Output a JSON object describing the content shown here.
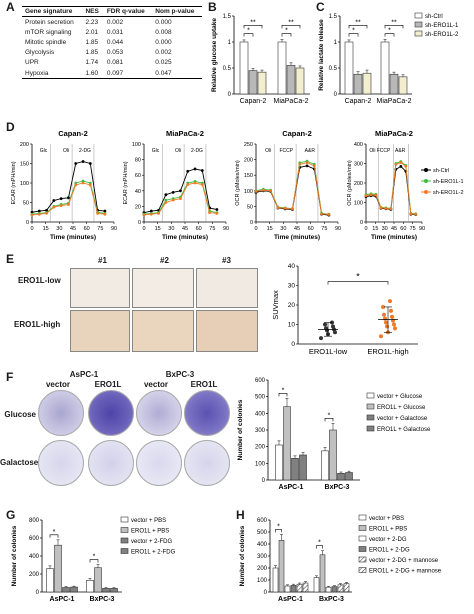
{
  "panels": {
    "A": "A",
    "B": "B",
    "C": "C",
    "D": "D",
    "E": "E",
    "F": "F",
    "G": "G",
    "H": "H"
  },
  "table": {
    "headers": [
      "Gene signature",
      "NES",
      "FDR q-value",
      "Nom p-value"
    ],
    "rows": [
      [
        "Protein secretion",
        "2.23",
        "0.002",
        "0.000"
      ],
      [
        "mTOR signaling",
        "2.01",
        "0.031",
        "0.008"
      ],
      [
        "Mitotic spindle",
        "1.85",
        "0.044",
        "0.000"
      ],
      [
        "Glycolysis",
        "1.85",
        "0.053",
        "0.002"
      ],
      [
        "UPR",
        "1.74",
        "0.081",
        "0.025"
      ],
      [
        "Hypoxia",
        "1.60",
        "0.097",
        "0.047"
      ]
    ]
  },
  "legend_bc": [
    "sh-Ctrl",
    "sh-ERO1L-1",
    "sh-ERO1L-2"
  ],
  "legend_d": [
    "sh-Ctrl",
    "sh-ERO1L-1",
    "sh-ERO1L-2"
  ],
  "panel_d_titles": [
    "Capan-2",
    "MiaPaCa-2",
    "Capan-2",
    "MiaPaCa-2"
  ],
  "panel_d_xlabel": "Time (minutes)",
  "panel_d_ylabels": [
    "ECAR (mPH/min)",
    "ECAR (mPH/min)",
    "OCR (pMoles/min)",
    "OCR (pMoles/min)"
  ],
  "panel_d_injections": [
    [
      "Glc",
      "Oli",
      "2-DG"
    ],
    [
      "Glc",
      "Oli",
      "2-DG"
    ],
    [
      "Oli",
      "FCCP",
      "A&R"
    ],
    [
      "Oli",
      "FCCP",
      "A&R"
    ]
  ],
  "panel_e": {
    "columns": [
      "#1",
      "#2",
      "#3"
    ],
    "rows": [
      "ERO1L-low",
      "ERO1L-high"
    ]
  },
  "panel_f": {
    "columns": [
      "vector",
      "ERO1L"
    ],
    "rows": [
      "Glucose",
      "Galactose"
    ],
    "headers": [
      "AsPC-1",
      "BxPC-3"
    ],
    "legend": [
      "vector + Glucose",
      "ERO1L + Glucose",
      "vector + Galactose",
      "ERO1L + Galactose"
    ]
  },
  "panel_g_legend": [
    "vector + PBS",
    "ERO1L + PBS",
    "vector + 2-FDG",
    "ERO1L + 2-FDG"
  ],
  "panel_h_legend": [
    "vector + PBS",
    "ERO1L + PBS",
    "vector + 2-DG",
    "ERO1L + 2-DG",
    "vector + 2-DG + mannose",
    "ERO1L + 2-DG + mannose"
  ],
  "chart_data": [
    {
      "id": "B",
      "type": "bar",
      "ylabel": "Relative glucose uptake",
      "categories": [
        "Capan-2",
        "MiaPaCa-2"
      ],
      "ylim": [
        0,
        1.5
      ],
      "yticks": [
        0,
        0.5,
        1.0,
        1.5
      ],
      "series": [
        {
          "name": "sh-Ctrl",
          "values": [
            1.0,
            1.0
          ],
          "errors": [
            0.04,
            0.05
          ]
        },
        {
          "name": "sh-ERO1L-1",
          "values": [
            0.45,
            0.55
          ],
          "errors": [
            0.04,
            0.05
          ]
        },
        {
          "name": "sh-ERO1L-2",
          "values": [
            0.42,
            0.5
          ],
          "errors": [
            0.04,
            0.04
          ]
        }
      ],
      "significance": [
        "**",
        "*",
        "**",
        "*"
      ]
    },
    {
      "id": "C",
      "type": "bar",
      "ylabel": "Relative lactate release",
      "categories": [
        "Capan-2",
        "MiaPaCa-2"
      ],
      "ylim": [
        0,
        1.5
      ],
      "yticks": [
        0,
        0.5,
        1.0,
        1.5
      ],
      "series": [
        {
          "name": "sh-Ctrl",
          "values": [
            1.0,
            1.0
          ],
          "errors": [
            0.04,
            0.05
          ]
        },
        {
          "name": "sh-ERO1L-1",
          "values": [
            0.38,
            0.38
          ],
          "errors": [
            0.05,
            0.04
          ]
        },
        {
          "name": "sh-ERO1L-2",
          "values": [
            0.4,
            0.33
          ],
          "errors": [
            0.06,
            0.04
          ]
        }
      ],
      "significance": [
        "**",
        "*",
        "**",
        "*"
      ]
    },
    {
      "id": "D1",
      "type": "line",
      "title": "Capan-2",
      "xlabel": "Time (minutes)",
      "ylabel": "ECAR (mPH/min)",
      "x": [
        0,
        8,
        16,
        24,
        32,
        40,
        48,
        56,
        64,
        72,
        80
      ],
      "xlim": [
        0,
        90
      ],
      "xticks": [
        0,
        15,
        30,
        45,
        60,
        75,
        90
      ],
      "ylim": [
        0,
        200
      ],
      "yticks": [
        0,
        50,
        100,
        150,
        200
      ],
      "series": [
        {
          "name": "sh-Ctrl",
          "values": [
            25,
            28,
            30,
            55,
            60,
            62,
            150,
            155,
            150,
            30,
            28
          ]
        },
        {
          "name": "sh-ERO1L-1",
          "values": [
            20,
            22,
            24,
            40,
            45,
            48,
            100,
            105,
            100,
            25,
            22
          ]
        },
        {
          "name": "sh-ERO1L-2",
          "values": [
            18,
            20,
            22,
            38,
            42,
            45,
            95,
            100,
            95,
            22,
            20
          ]
        }
      ]
    },
    {
      "id": "D2",
      "type": "line",
      "title": "MiaPaCa-2",
      "xlabel": "Time (minutes)",
      "ylabel": "ECAR (mPH/min)",
      "x": [
        0,
        8,
        16,
        24,
        32,
        40,
        48,
        56,
        64,
        72,
        80
      ],
      "xlim": [
        0,
        90
      ],
      "xticks": [
        0,
        15,
        30,
        45,
        60,
        75,
        90
      ],
      "ylim": [
        0,
        100
      ],
      "yticks": [
        0,
        20,
        40,
        60,
        80,
        100
      ],
      "series": [
        {
          "name": "sh-Ctrl",
          "values": [
            12,
            14,
            15,
            35,
            38,
            40,
            65,
            68,
            66,
            18,
            16
          ]
        },
        {
          "name": "sh-ERO1L-1",
          "values": [
            10,
            11,
            12,
            28,
            30,
            32,
            50,
            52,
            50,
            14,
            12
          ]
        },
        {
          "name": "sh-ERO1L-2",
          "values": [
            9,
            10,
            11,
            25,
            28,
            30,
            48,
            50,
            48,
            12,
            11
          ]
        }
      ]
    },
    {
      "id": "D3",
      "type": "line",
      "title": "Capan-2",
      "xlabel": "Time (minutes)",
      "ylabel": "OCR (pMoles/min)",
      "x": [
        0,
        8,
        16,
        24,
        32,
        40,
        48,
        56,
        64,
        72,
        80
      ],
      "xlim": [
        0,
        90
      ],
      "xticks": [
        0,
        15,
        30,
        45,
        60,
        75,
        90
      ],
      "ylim": [
        0,
        250
      ],
      "yticks": [
        0,
        50,
        100,
        150,
        200,
        250
      ],
      "series": [
        {
          "name": "sh-Ctrl",
          "values": [
            95,
            100,
            98,
            45,
            42,
            40,
            175,
            180,
            170,
            25,
            22
          ]
        },
        {
          "name": "sh-ERO1L-1",
          "values": [
            100,
            105,
            102,
            48,
            45,
            43,
            190,
            195,
            185,
            28,
            25
          ]
        },
        {
          "name": "sh-ERO1L-2",
          "values": [
            98,
            102,
            100,
            46,
            44,
            42,
            185,
            190,
            180,
            26,
            24
          ]
        }
      ]
    },
    {
      "id": "D4",
      "type": "line",
      "title": "MiaPaCa-2",
      "xlabel": "Time (minutes)",
      "ylabel": "OCR (pMoles/min)",
      "x": [
        0,
        8,
        16,
        24,
        32,
        40,
        48,
        56,
        64,
        72,
        80
      ],
      "xlim": [
        0,
        90
      ],
      "xticks": [
        0,
        15,
        30,
        45,
        60,
        75,
        90
      ],
      "ylim": [
        0,
        400
      ],
      "yticks": [
        0,
        100,
        200,
        300,
        400
      ],
      "series": [
        {
          "name": "sh-Ctrl",
          "values": [
            130,
            135,
            132,
            70,
            68,
            65,
            270,
            285,
            260,
            40,
            38
          ]
        },
        {
          "name": "sh-ERO1L-1",
          "values": [
            140,
            145,
            142,
            75,
            72,
            70,
            300,
            310,
            290,
            45,
            42
          ]
        },
        {
          "name": "sh-ERO1L-2",
          "values": [
            135,
            140,
            138,
            72,
            70,
            68,
            295,
            305,
            285,
            42,
            40
          ]
        }
      ]
    },
    {
      "id": "E",
      "type": "scatter",
      "ylabel": "SUVmax",
      "categories": [
        "ERO1L-low",
        "ERO1L-high"
      ],
      "ylim": [
        0,
        40
      ],
      "yticks": [
        0,
        10,
        20,
        30,
        40
      ],
      "series": [
        {
          "name": "ERO1L-low",
          "mean": 7.5,
          "sd": 3.5,
          "values": [
            3,
            5,
            6,
            7,
            7.5,
            8,
            9,
            10,
            11
          ]
        },
        {
          "name": "ERO1L-high",
          "mean": 12.5,
          "sd": 6.5,
          "values": [
            4,
            6,
            8,
            9,
            10,
            11,
            12,
            13,
            14,
            15,
            17,
            19,
            22
          ]
        }
      ],
      "significance": "*"
    },
    {
      "id": "F",
      "type": "bar",
      "ylabel": "Number of colonies",
      "categories": [
        "AsPC-1",
        "BxPC-3"
      ],
      "ylim": [
        0,
        600
      ],
      "yticks": [
        0,
        100,
        200,
        300,
        400,
        500,
        600
      ],
      "series": [
        {
          "name": "vector + Glucose",
          "values": [
            210,
            175
          ],
          "errors": [
            25,
            20
          ]
        },
        {
          "name": "ERO1L + Glucose",
          "values": [
            440,
            300
          ],
          "errors": [
            50,
            40
          ]
        },
        {
          "name": "vector + Galactose",
          "values": [
            130,
            40
          ],
          "errors": [
            15,
            8
          ]
        },
        {
          "name": "ERO1L + Galactose",
          "values": [
            150,
            45
          ],
          "errors": [
            15,
            8
          ]
        }
      ],
      "significance": [
        "*",
        "*"
      ]
    },
    {
      "id": "G",
      "type": "bar",
      "ylabel": "Number of colonies",
      "categories": [
        "AsPC-1",
        "BxPC-3"
      ],
      "ylim": [
        0,
        800
      ],
      "yticks": [
        0,
        200,
        400,
        600,
        800
      ],
      "series": [
        {
          "name": "vector + PBS",
          "values": [
            260,
            130
          ],
          "errors": [
            30,
            20
          ]
        },
        {
          "name": "ERO1L + PBS",
          "values": [
            520,
            270
          ],
          "errors": [
            60,
            35
          ]
        },
        {
          "name": "vector + 2-FDG",
          "values": [
            50,
            40
          ],
          "errors": [
            10,
            8
          ]
        },
        {
          "name": "ERO1L + 2-FDG",
          "values": [
            55,
            40
          ],
          "errors": [
            10,
            8
          ]
        }
      ],
      "significance": [
        "*",
        "*"
      ]
    },
    {
      "id": "H",
      "type": "bar",
      "ylabel": "Number of colonies",
      "categories": [
        "AsPC-1",
        "BxPC-3"
      ],
      "ylim": [
        0,
        600
      ],
      "yticks": [
        0,
        100,
        200,
        300,
        400,
        500,
        600
      ],
      "series": [
        {
          "name": "vector + PBS",
          "values": [
            200,
            120
          ],
          "errors": [
            20,
            15
          ]
        },
        {
          "name": "ERO1L + PBS",
          "values": [
            430,
            310
          ],
          "errors": [
            50,
            35
          ]
        },
        {
          "name": "vector + 2-DG",
          "values": [
            50,
            40
          ],
          "errors": [
            10,
            8
          ]
        },
        {
          "name": "ERO1L + 2-DG",
          "values": [
            55,
            45
          ],
          "errors": [
            10,
            8
          ]
        },
        {
          "name": "vector + 2-DG + mannose",
          "values": [
            65,
            60
          ],
          "errors": [
            10,
            10
          ]
        },
        {
          "name": "ERO1L + 2-DG + mannose",
          "values": [
            75,
            70
          ],
          "errors": [
            12,
            10
          ]
        }
      ],
      "significance": [
        "*",
        "*"
      ]
    }
  ]
}
